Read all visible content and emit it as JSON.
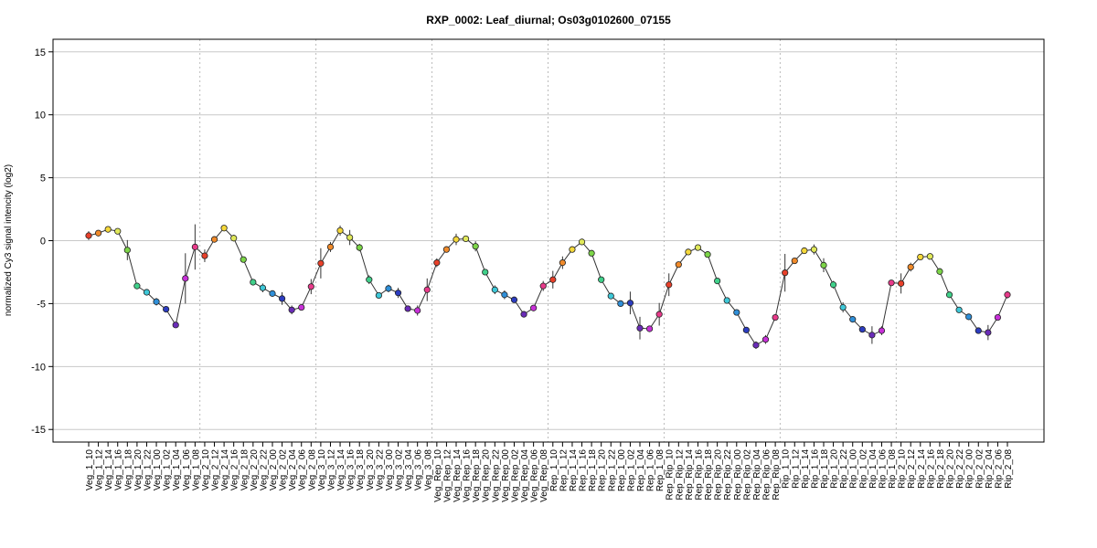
{
  "chart_data": {
    "type": "line",
    "title": "RXP_0002: Leaf_diurnal; Os03g0102600_07155",
    "xlabel": "",
    "ylabel": "normalized Cy3 signal intencity (log2)",
    "ylim": [
      -16,
      16
    ],
    "yticks": [
      -15,
      -10,
      -5,
      0,
      5,
      10,
      15
    ],
    "grid": true,
    "categories": [
      "Veg_1_10",
      "Veg_1_12",
      "Veg_1_14",
      "Veg_1_16",
      "Veg_1_18",
      "Veg_1_20",
      "Veg_1_22",
      "Veg_1_00",
      "Veg_1_02",
      "Veg_1_04",
      "Veg_1_06",
      "Veg_1_08",
      "Veg_2_10",
      "Veg_2_12",
      "Veg_2_14",
      "Veg_2_16",
      "Veg_2_18",
      "Veg_2_20",
      "Veg_2_22",
      "Veg_2_00",
      "Veg_2_02",
      "Veg_2_04",
      "Veg_2_06",
      "Veg_2_08",
      "Veg_3_10",
      "Veg_3_12",
      "Veg_3_14",
      "Veg_3_16",
      "Veg_3_18",
      "Veg_3_20",
      "Veg_3_22",
      "Veg_3_00",
      "Veg_3_02",
      "Veg_3_04",
      "Veg_3_06",
      "Veg_3_08",
      "Veg_Rep_10",
      "Veg_Rep_12",
      "Veg_Rep_14",
      "Veg_Rep_16",
      "Veg_Rep_18",
      "Veg_Rep_20",
      "Veg_Rep_22",
      "Veg_Rep_00",
      "Veg_Rep_02",
      "Veg_Rep_04",
      "Veg_Rep_06",
      "Veg_Rep_08",
      "Rep_1_10",
      "Rep_1_12",
      "Rep_1_14",
      "Rep_1_16",
      "Rep_1_18",
      "Rep_1_20",
      "Rep_1_22",
      "Rep_1_00",
      "Rep_1_02",
      "Rep_1_04",
      "Rep_1_06",
      "Rep_1_08",
      "Rep_Rip_10",
      "Rep_Rip_12",
      "Rep_Rip_14",
      "Rep_Rip_16",
      "Rep_Rip_18",
      "Rep_Rip_20",
      "Rep_Rip_22",
      "Rep_Rip_00",
      "Rep_Rip_02",
      "Rep_Rip_04",
      "Rep_Rip_06",
      "Rep_Rip_08",
      "Rip_1_10",
      "Rip_1_12",
      "Rip_1_14",
      "Rip_1_16",
      "Rip_1_18",
      "Rip_1_20",
      "Rip_1_22",
      "Rip_1_00",
      "Rip_1_02",
      "Rip_1_04",
      "Rip_1_06",
      "Rip_1_08",
      "Rip_2_10",
      "Rip_2_12",
      "Rip_2_14",
      "Rip_2_16",
      "Rip_2_18",
      "Rip_2_20",
      "Rip_2_22",
      "Rip_2_00",
      "Rip_2_02",
      "Rip_2_04",
      "Rip_2_06",
      "Rip_2_08"
    ],
    "values": [
      0.4,
      0.6,
      0.9,
      0.75,
      -0.75,
      -3.6,
      -4.1,
      -4.85,
      -5.45,
      -6.7,
      -3.0,
      -0.5,
      -1.2,
      0.1,
      1.0,
      0.2,
      -1.5,
      -3.3,
      -3.75,
      -4.2,
      -4.6,
      -5.5,
      -5.3,
      -3.65,
      -1.8,
      -0.5,
      0.8,
      0.25,
      -0.55,
      -3.1,
      -4.35,
      -3.8,
      -4.15,
      -5.4,
      -5.55,
      -3.9,
      -1.75,
      -0.7,
      0.1,
      0.15,
      -0.45,
      -2.5,
      -3.9,
      -4.3,
      -4.7,
      -5.85,
      -5.35,
      -3.6,
      -3.1,
      -1.75,
      -0.7,
      -0.1,
      -1.0,
      -3.1,
      -4.4,
      -5.0,
      -4.95,
      -6.95,
      -7.0,
      -5.85,
      -3.5,
      -1.9,
      -0.9,
      -0.55,
      -1.1,
      -3.2,
      -4.75,
      -5.7,
      -7.1,
      -8.3,
      -7.85,
      -6.1,
      -2.55,
      -1.6,
      -0.8,
      -0.7,
      -1.95,
      -3.5,
      -5.3,
      -6.25,
      -7.05,
      -7.5,
      -7.15,
      -3.35,
      -3.4,
      -2.1,
      -1.3,
      -1.25,
      -2.45,
      -4.3,
      -5.5,
      -6.05,
      -7.15,
      -7.3,
      -6.1,
      -4.3
    ],
    "errors": [
      0.35,
      0.2,
      0.15,
      0.15,
      0.8,
      0.2,
      0.2,
      0.3,
      0.2,
      0.2,
      2.0,
      1.8,
      0.5,
      0.2,
      0.2,
      0.25,
      0.2,
      0.2,
      0.35,
      0.2,
      0.5,
      0.35,
      0.2,
      0.6,
      1.2,
      0.4,
      0.4,
      0.6,
      0.3,
      0.35,
      0.2,
      0.3,
      0.4,
      0.2,
      0.4,
      0.9,
      0.35,
      0.2,
      0.45,
      0.2,
      0.4,
      0.2,
      0.35,
      0.35,
      0.2,
      0.2,
      0.2,
      0.4,
      0.7,
      0.5,
      0.2,
      0.2,
      0.2,
      0.2,
      0.2,
      0.25,
      0.9,
      0.9,
      0.2,
      0.9,
      0.9,
      0.2,
      0.2,
      0.2,
      0.2,
      0.2,
      0.2,
      0.2,
      0.2,
      0.3,
      0.35,
      0.2,
      1.5,
      0.2,
      0.2,
      0.4,
      0.55,
      0.3,
      0.4,
      0.2,
      0.2,
      0.7,
      0.35,
      0.2,
      0.8,
      0.35,
      0.2,
      0.2,
      0.25,
      0.2,
      0.2,
      0.2,
      0.25,
      0.6,
      0.2,
      0.3
    ],
    "point_colors": [
      "#e8402a",
      "#f08a2a",
      "#f5d83a",
      "#e0e85a",
      "#7cd548",
      "#40d08a",
      "#3ec8d8",
      "#2f8fd8",
      "#2c3cc0",
      "#6a2cb8",
      "#c830d8",
      "#e83a8a"
    ],
    "group_separators_after": [
      "Veg_1_08",
      "Veg_2_08",
      "Veg_3_08",
      "Veg_Rep_08",
      "Rep_1_08",
      "Rep_Rip_08",
      "Rip_1_08"
    ]
  }
}
